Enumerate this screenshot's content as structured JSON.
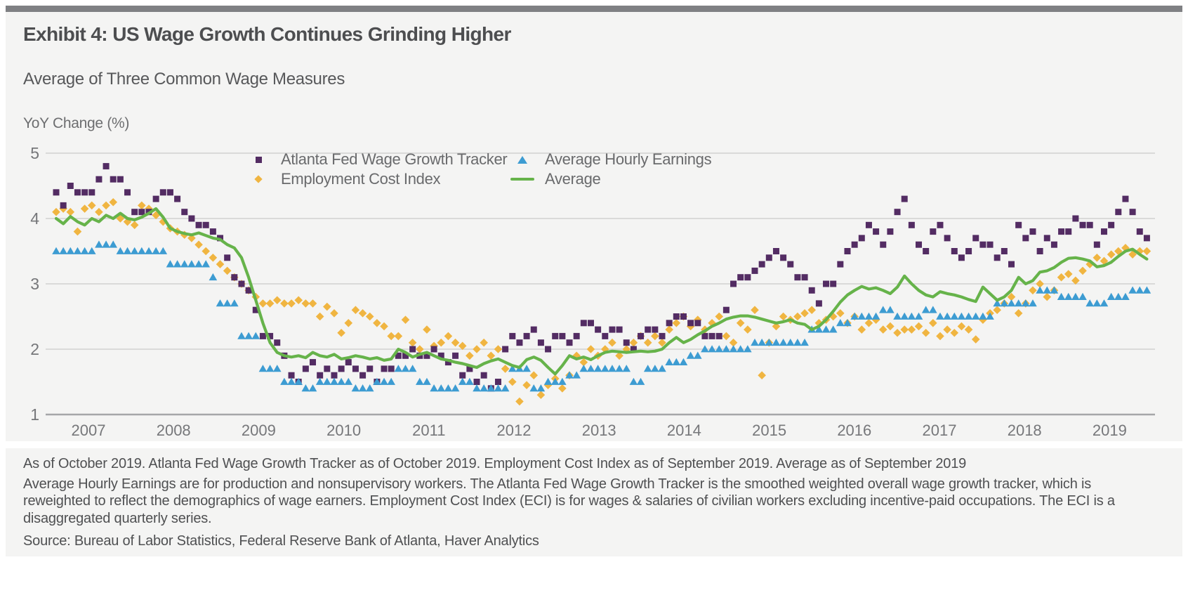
{
  "header": {
    "title": "Exhibit 4: US Wage Growth Continues Grinding Higher",
    "subtitle": "Average of Three Common Wage Measures",
    "y_axis_label": "YoY Change (%)"
  },
  "footnotes": {
    "as_of": "As of October 2019. Atlanta Fed Wage Growth Tracker as of October 2019. Employment Cost Index as of September 2019. Average as of September 2019",
    "body": "Average Hourly Earnings are for production and nonsupervisory workers. The Atlanta Fed Wage Growth Tracker is the smoothed weighted overall wage growth tracker, which is reweighted to reflect the demographics of wage earners. Employment Cost Index (ECI) is for wages & salaries of civilian workers excluding incentive-paid occupations. The ECI is a disaggregated quarterly series.",
    "source": "Source: Bureau of Labor Statistics, Federal Reserve Bank of Atlanta, Haver Analytics"
  },
  "chart_data": {
    "type": "scatter",
    "title": "Average of Three Common Wage Measures",
    "ylabel": "YoY Change (%)",
    "ylim": [
      1,
      5
    ],
    "y_ticks": [
      5,
      4,
      3,
      2,
      1
    ],
    "x_tick_years": [
      "2007",
      "2008",
      "2009",
      "2010",
      "2011",
      "2012",
      "2013",
      "2014",
      "2015",
      "2016",
      "2017",
      "2018",
      "2019"
    ],
    "x_start": "2007-01",
    "x_end": "2019-10",
    "frequency": "monthly",
    "grid": "horizontal",
    "legend_position": "top-inside",
    "colors": {
      "atlanta": "#532c63",
      "eci": "#f0b541",
      "ahe": "#3d9cd2",
      "average": "#66b34a"
    },
    "series": [
      {
        "name": "Atlanta Fed Wage Growth Tracker",
        "marker": "square",
        "color": "#532c63",
        "values": [
          4.4,
          4.2,
          4.5,
          4.4,
          4.4,
          4.4,
          4.6,
          4.8,
          4.6,
          4.6,
          4.4,
          4.1,
          4.1,
          4.1,
          4.3,
          4.4,
          4.4,
          4.3,
          4.1,
          4.0,
          3.9,
          3.9,
          3.8,
          3.7,
          3.4,
          3.1,
          3.0,
          2.9,
          2.6,
          2.2,
          2.2,
          2.1,
          1.9,
          1.6,
          1.5,
          1.7,
          1.8,
          1.6,
          1.7,
          1.6,
          1.7,
          1.8,
          1.7,
          1.6,
          1.7,
          1.5,
          1.7,
          1.7,
          1.9,
          1.9,
          2.0,
          1.9,
          1.9,
          2.0,
          1.9,
          1.8,
          1.9,
          1.6,
          1.7,
          1.5,
          1.6,
          1.4,
          1.5,
          2.0,
          2.2,
          2.1,
          2.2,
          2.3,
          2.1,
          2.0,
          2.2,
          2.2,
          2.1,
          2.2,
          2.4,
          2.4,
          2.3,
          2.2,
          2.3,
          2.3,
          2.1,
          2.0,
          2.2,
          2.3,
          2.3,
          2.2,
          2.4,
          2.5,
          2.5,
          2.4,
          2.4,
          2.2,
          2.2,
          2.2,
          2.6,
          3.0,
          3.1,
          3.1,
          3.2,
          3.3,
          3.4,
          3.5,
          3.4,
          3.3,
          3.1,
          3.1,
          2.9,
          2.7,
          3.0,
          3.0,
          3.3,
          3.5,
          3.6,
          3.7,
          3.9,
          3.8,
          3.6,
          3.8,
          4.1,
          4.3,
          3.9,
          3.6,
          3.5,
          3.8,
          3.9,
          3.7,
          3.5,
          3.4,
          3.5,
          3.7,
          3.6,
          3.6,
          3.4,
          3.5,
          3.3,
          3.9,
          3.7,
          3.8,
          3.5,
          3.7,
          3.6,
          3.8,
          3.8,
          4.0,
          3.9,
          3.9,
          3.6,
          3.8,
          3.9,
          4.1,
          4.3,
          4.1,
          3.8,
          3.7
        ]
      },
      {
        "name": "Employment Cost Index",
        "marker": "diamond",
        "color": "#f0b541",
        "values": [
          4.1,
          4.15,
          4.1,
          3.8,
          4.15,
          4.2,
          4.1,
          4.2,
          4.25,
          4.0,
          3.95,
          3.9,
          4.2,
          4.15,
          4.05,
          3.95,
          3.85,
          3.8,
          3.75,
          3.7,
          3.6,
          3.5,
          3.4,
          3.3,
          3.2,
          3.1,
          3.0,
          2.9,
          2.8,
          2.7,
          2.7,
          2.75,
          2.7,
          2.7,
          2.75,
          2.7,
          2.7,
          2.5,
          2.65,
          2.55,
          2.25,
          2.4,
          2.6,
          2.55,
          2.5,
          2.4,
          2.35,
          2.2,
          2.2,
          2.45,
          2.1,
          2.0,
          2.3,
          2.05,
          2.1,
          2.2,
          2.1,
          2.05,
          1.9,
          2.0,
          2.1,
          1.9,
          2.0,
          1.7,
          1.5,
          1.2,
          1.45,
          1.6,
          1.3,
          1.45,
          1.55,
          1.4,
          1.6,
          1.9,
          1.8,
          2.0,
          1.9,
          2.0,
          2.1,
          1.9,
          2.0,
          2.1,
          2.2,
          2.1,
          2.2,
          2.1,
          2.3,
          2.4,
          2.5,
          2.35,
          2.45,
          2.3,
          2.4,
          2.5,
          2.2,
          2.1,
          2.4,
          2.3,
          2.6,
          1.6,
          2.1,
          2.35,
          2.5,
          2.45,
          2.5,
          2.55,
          2.6,
          2.4,
          2.45,
          2.5,
          2.55,
          2.4,
          2.5,
          2.3,
          2.4,
          2.45,
          2.3,
          2.35,
          2.25,
          2.3,
          2.3,
          2.35,
          2.25,
          2.4,
          2.2,
          2.3,
          2.25,
          2.35,
          2.3,
          2.15,
          2.45,
          2.55,
          2.6,
          2.7,
          2.8,
          2.55,
          2.7,
          2.9,
          3.0,
          2.8,
          2.9,
          3.1,
          3.15,
          3.05,
          3.2,
          3.3,
          3.4,
          3.35,
          3.45,
          3.5,
          3.55,
          3.45,
          3.5,
          3.5
        ]
      },
      {
        "name": "Average Hourly Earnings",
        "marker": "triangle",
        "color": "#3d9cd2",
        "values": [
          3.5,
          3.5,
          3.5,
          3.5,
          3.5,
          3.5,
          3.6,
          3.6,
          3.6,
          3.5,
          3.5,
          3.5,
          3.5,
          3.5,
          3.5,
          3.5,
          3.3,
          3.3,
          3.3,
          3.3,
          3.3,
          3.3,
          3.1,
          2.7,
          2.7,
          2.7,
          2.2,
          2.2,
          2.2,
          1.7,
          1.7,
          1.7,
          1.5,
          1.5,
          1.5,
          1.4,
          1.4,
          1.5,
          1.5,
          1.5,
          1.5,
          1.5,
          1.4,
          1.4,
          1.4,
          1.5,
          1.5,
          1.5,
          1.7,
          1.7,
          1.7,
          1.5,
          1.5,
          1.4,
          1.4,
          1.4,
          1.4,
          1.5,
          1.5,
          1.4,
          1.4,
          1.4,
          1.4,
          1.4,
          1.7,
          1.7,
          1.7,
          1.4,
          1.4,
          1.5,
          1.5,
          1.5,
          1.6,
          1.6,
          1.7,
          1.7,
          1.7,
          1.7,
          1.7,
          1.7,
          1.7,
          1.5,
          1.5,
          1.7,
          1.7,
          1.7,
          1.8,
          1.8,
          1.8,
          1.9,
          1.9,
          2.0,
          2.0,
          2.0,
          2.0,
          2.0,
          2.0,
          2.0,
          2.1,
          2.1,
          2.1,
          2.1,
          2.1,
          2.1,
          2.1,
          2.1,
          2.3,
          2.3,
          2.3,
          2.3,
          2.4,
          2.4,
          2.5,
          2.5,
          2.5,
          2.5,
          2.6,
          2.6,
          2.5,
          2.5,
          2.5,
          2.5,
          2.6,
          2.6,
          2.5,
          2.5,
          2.5,
          2.5,
          2.5,
          2.5,
          2.5,
          2.5,
          2.7,
          2.7,
          2.7,
          2.7,
          2.7,
          2.7,
          2.9,
          2.9,
          2.9,
          2.8,
          2.8,
          2.8,
          2.8,
          2.7,
          2.7,
          2.7,
          2.8,
          2.8,
          2.8,
          2.9,
          2.9,
          2.9
        ]
      },
      {
        "name": "Average",
        "marker": "line",
        "color": "#66b34a",
        "values": [
          4.0,
          3.92,
          4.03,
          3.95,
          3.9,
          4.0,
          3.95,
          4.05,
          4.0,
          4.08,
          4.0,
          3.98,
          4.02,
          4.08,
          4.15,
          4.02,
          3.85,
          3.8,
          3.77,
          3.75,
          3.78,
          3.74,
          3.7,
          3.68,
          3.6,
          3.55,
          3.4,
          3.1,
          2.75,
          2.4,
          2.1,
          1.95,
          1.9,
          1.88,
          1.9,
          1.87,
          1.95,
          1.9,
          1.88,
          1.92,
          1.85,
          1.87,
          1.9,
          1.88,
          1.85,
          1.87,
          1.83,
          1.85,
          2.0,
          1.95,
          1.88,
          1.92,
          1.95,
          1.9,
          1.85,
          1.83,
          1.8,
          1.78,
          1.75,
          1.72,
          1.78,
          1.82,
          1.85,
          1.8,
          1.75,
          1.72,
          1.84,
          1.88,
          1.83,
          1.72,
          1.62,
          1.75,
          1.9,
          1.85,
          1.88,
          1.84,
          1.9,
          1.95,
          1.97,
          1.96,
          1.95,
          1.96,
          1.97,
          1.96,
          1.97,
          2.0,
          2.1,
          2.18,
          2.1,
          2.15,
          2.22,
          2.28,
          2.35,
          2.4,
          2.46,
          2.49,
          2.51,
          2.51,
          2.49,
          2.46,
          2.43,
          2.4,
          2.42,
          2.45,
          2.4,
          2.38,
          2.3,
          2.35,
          2.45,
          2.58,
          2.72,
          2.83,
          2.9,
          2.96,
          2.92,
          2.94,
          2.9,
          2.85,
          2.95,
          3.12,
          3.0,
          2.9,
          2.83,
          2.8,
          2.88,
          2.85,
          2.83,
          2.8,
          2.76,
          2.73,
          2.95,
          2.85,
          2.75,
          2.8,
          2.9,
          3.1,
          3.0,
          3.05,
          3.18,
          3.2,
          3.25,
          3.33,
          3.39,
          3.4,
          3.38,
          3.35,
          3.26,
          3.28,
          3.33,
          3.42,
          3.5,
          3.53,
          3.45,
          3.38
        ]
      }
    ]
  }
}
